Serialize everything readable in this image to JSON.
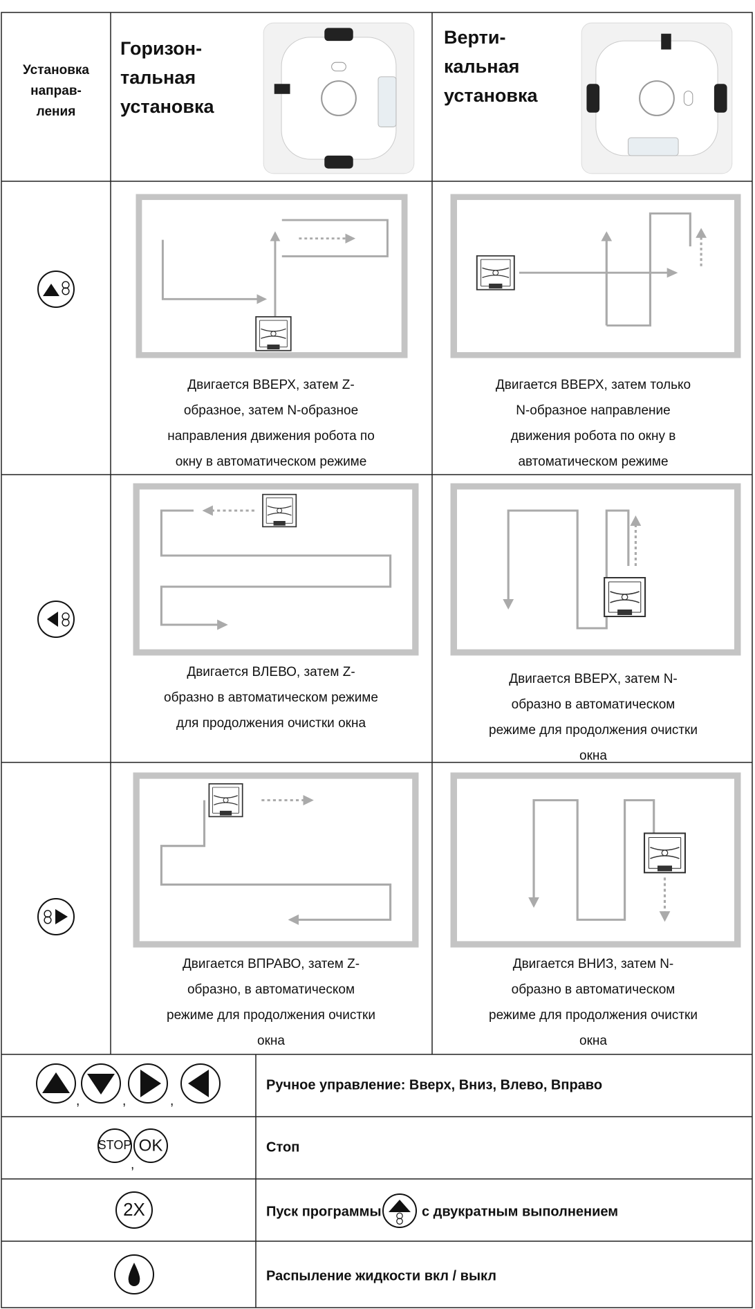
{
  "header": {
    "direction": [
      "Установка",
      "направ-",
      "ления"
    ],
    "horizontal": [
      "Горизон-",
      "тальная",
      "установка"
    ],
    "vertical": [
      "Верти-",
      "кальная",
      "установка"
    ]
  },
  "modes": [
    {
      "horizontal": [
        "Двигается ВВЕРХ, затем Z-",
        "образное, затем N-образное",
        "направления движения робота по",
        "окну в автоматическом режиме"
      ],
      "vertical": [
        "Двигается ВВЕРХ, затем только",
        "N-образное направление",
        "движения робота по окну в",
        "автоматическом режиме"
      ]
    },
    {
      "horizontal": [
        "Двигается ВЛЕВО, затем Z-",
        "образно в автоматическом режиме",
        "для продолжения очистки окна"
      ],
      "vertical": [
        "Двигается ВВЕРХ, затем N-",
        "образно в автоматическом",
        "режиме для продолжения очистки",
        "окна"
      ]
    },
    {
      "horizontal": [
        "Двигается ВПРАВО, затем Z-",
        "образно, в автоматическом",
        "режиме для продолжения очистки",
        "окна"
      ],
      "vertical": [
        "Двигается ВНИЗ, затем N-",
        "образно в автоматическом",
        "режиме для продолжения очистки",
        "окна"
      ]
    }
  ],
  "controls": [
    {
      "separators": [
        ",",
        ",",
        ","
      ],
      "description": [
        "Ручное управление: Вверх, Вниз, Влево, Вправо"
      ]
    },
    {
      "buttons": [
        "STOP",
        "OK"
      ],
      "separators": [
        ","
      ],
      "description": [
        "Стоп"
      ]
    },
    {
      "buttons": [
        "2X"
      ],
      "description": [
        "Пуск программы",
        "с двукратным выполнением"
      ]
    },
    {
      "description": [
        "Распыление жидкости вкл / выкл"
      ]
    }
  ]
}
